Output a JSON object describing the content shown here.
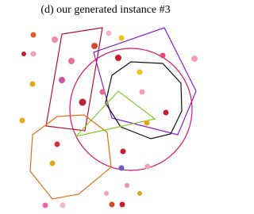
{
  "caption": "(d) our generated instance #3"
}
